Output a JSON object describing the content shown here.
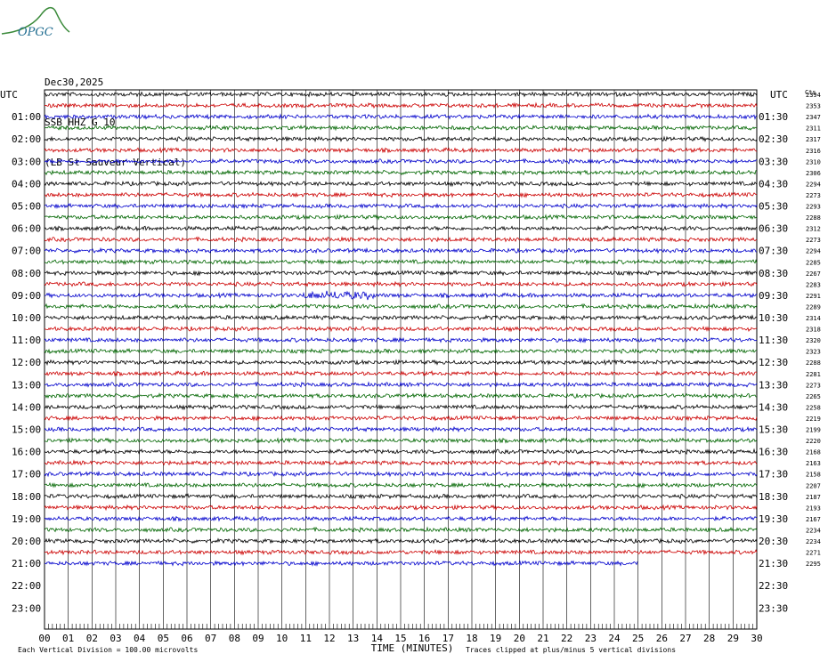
{
  "logo": {
    "text": "OPGC"
  },
  "header": {
    "date": "Dec30,2025",
    "station": "SSB HHZ G 10",
    "location": "(LB St Sauveur Vertical)"
  },
  "colors": {
    "black": "#000000",
    "red": "#cc0000",
    "blue": "#0000cc",
    "green": "#006600",
    "grid": "#000000",
    "logo": "#1e6b8f",
    "logo_swoosh": "#3a8a3a"
  },
  "chart_data": {
    "type": "line",
    "title": "SSB HHZ G 10",
    "xlabel": "TIME (MINUTES)",
    "ylabel": "UTC",
    "left_label": "UTC",
    "right_label": "UTC",
    "right_counts_header": "Cts",
    "x_ticks": [
      "00",
      "01",
      "02",
      "03",
      "04",
      "05",
      "06",
      "07",
      "08",
      "09",
      "10",
      "11",
      "12",
      "13",
      "14",
      "15",
      "16",
      "17",
      "18",
      "19",
      "20",
      "21",
      "22",
      "23",
      "24",
      "25",
      "26",
      "27",
      "28",
      "29",
      "30"
    ],
    "left_hour_labels": [
      "01:00",
      "02:00",
      "03:00",
      "04:00",
      "05:00",
      "06:00",
      "07:00",
      "08:00",
      "09:00",
      "10:00",
      "11:00",
      "12:00",
      "13:00",
      "14:00",
      "15:00",
      "16:00",
      "17:00",
      "18:00",
      "19:00",
      "20:00",
      "21:00",
      "22:00",
      "23:00"
    ],
    "right_hour_labels": [
      "01:30",
      "02:30",
      "03:30",
      "04:30",
      "05:30",
      "06:30",
      "07:30",
      "08:30",
      "09:30",
      "10:30",
      "11:30",
      "12:30",
      "13:30",
      "14:30",
      "15:30",
      "16:30",
      "17:30",
      "18:30",
      "19:30",
      "20:30",
      "21:30",
      "22:30",
      "23:30"
    ],
    "trace_color_cycle": [
      "black",
      "red",
      "blue",
      "green"
    ],
    "trace_counts": [
      "2394",
      "2353",
      "2347",
      "2311",
      "2317",
      "2316",
      "2310",
      "2306",
      "2294",
      "2273",
      "2293",
      "2288",
      "2312",
      "2273",
      "2294",
      "2285",
      "2267",
      "2283",
      "2291",
      "2289",
      "2314",
      "2318",
      "2320",
      "2323",
      "2288",
      "2281",
      "2273",
      "2265",
      "2258",
      "2219",
      "2199",
      "2220",
      "2168",
      "2163",
      "2158",
      "2207",
      "2187",
      "2193",
      "2167",
      "2234",
      "2234",
      "2271",
      "2295"
    ],
    "last_trace_end_minute": 25,
    "rows_total": 48,
    "minutes_per_row": 30,
    "footer_left": "Each Vertical Division =  100.00 microvolts",
    "footer_right": "Traces clipped at plus/minus 5 vertical divisions"
  }
}
